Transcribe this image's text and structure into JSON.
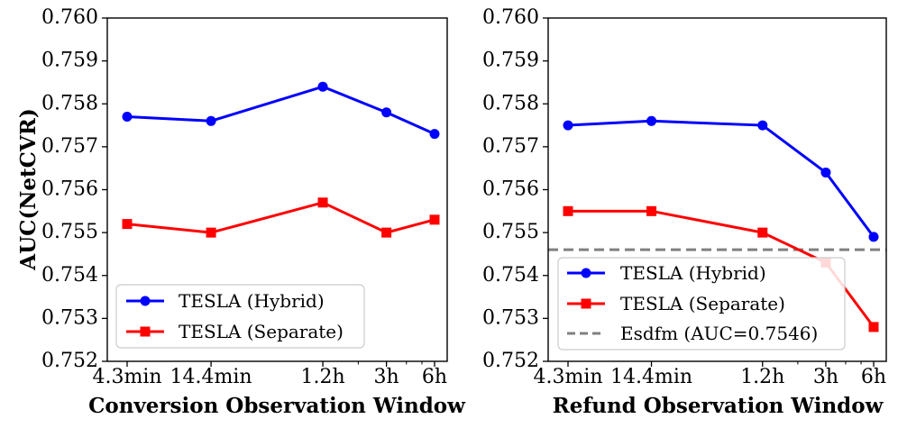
{
  "chart_data": [
    {
      "type": "line",
      "title": "",
      "xlabel": "Conversion Observation Window",
      "ylabel": "AUC(NetCVR)",
      "x_scale": "log",
      "x_ticks": [
        {
          "label": "4.3min",
          "value_minutes": 4.3
        },
        {
          "label": "14.4min",
          "value_minutes": 14.4
        },
        {
          "label": "1.2h",
          "value_minutes": 72
        },
        {
          "label": "3h",
          "value_minutes": 180
        },
        {
          "label": "6h",
          "value_minutes": 360
        }
      ],
      "ylim": [
        0.752,
        0.76
      ],
      "y_ticks": [
        "0.752",
        "0.753",
        "0.754",
        "0.755",
        "0.756",
        "0.757",
        "0.758",
        "0.759",
        "0.760"
      ],
      "series": [
        {
          "name": "TESLA (Hybrid)",
          "color": "#0000ff",
          "marker": "circle",
          "values": [
            0.7577,
            0.7576,
            0.7584,
            0.7578,
            0.7573
          ]
        },
        {
          "name": "TESLA (Separate)",
          "color": "#ff0000",
          "marker": "square",
          "values": [
            0.7552,
            0.755,
            0.7557,
            0.755,
            0.7553
          ]
        }
      ],
      "reference_lines": [],
      "legend": {
        "placement": "lower-left",
        "entries": [
          "TESLA (Hybrid)",
          "TESLA (Separate)"
        ]
      }
    },
    {
      "type": "line",
      "title": "",
      "xlabel": "Refund Observation Window",
      "ylabel": "",
      "x_scale": "log",
      "x_ticks": [
        {
          "label": "4.3min",
          "value_minutes": 4.3
        },
        {
          "label": "14.4min",
          "value_minutes": 14.4
        },
        {
          "label": "1.2h",
          "value_minutes": 72
        },
        {
          "label": "3h",
          "value_minutes": 180
        },
        {
          "label": "6h",
          "value_minutes": 360
        }
      ],
      "ylim": [
        0.752,
        0.76
      ],
      "y_ticks": [
        "0.752",
        "0.753",
        "0.754",
        "0.755",
        "0.756",
        "0.757",
        "0.758",
        "0.759",
        "0.760"
      ],
      "series": [
        {
          "name": "TESLA (Hybrid)",
          "color": "#0000ff",
          "marker": "circle",
          "values": [
            0.7575,
            0.7576,
            0.7575,
            0.7564,
            0.7549
          ]
        },
        {
          "name": "TESLA (Separate)",
          "color": "#ff0000",
          "marker": "square",
          "values": [
            0.7555,
            0.7555,
            0.755,
            0.7543,
            0.7528
          ]
        }
      ],
      "reference_lines": [
        {
          "name": "Esdfm (AUC=0.7546)",
          "value": 0.7546,
          "color": "#808080",
          "style": "dashed"
        }
      ],
      "legend": {
        "placement": "lower-left",
        "entries": [
          "TESLA (Hybrid)",
          "TESLA (Separate)",
          "Esdfm (AUC=0.7546)"
        ]
      }
    }
  ]
}
